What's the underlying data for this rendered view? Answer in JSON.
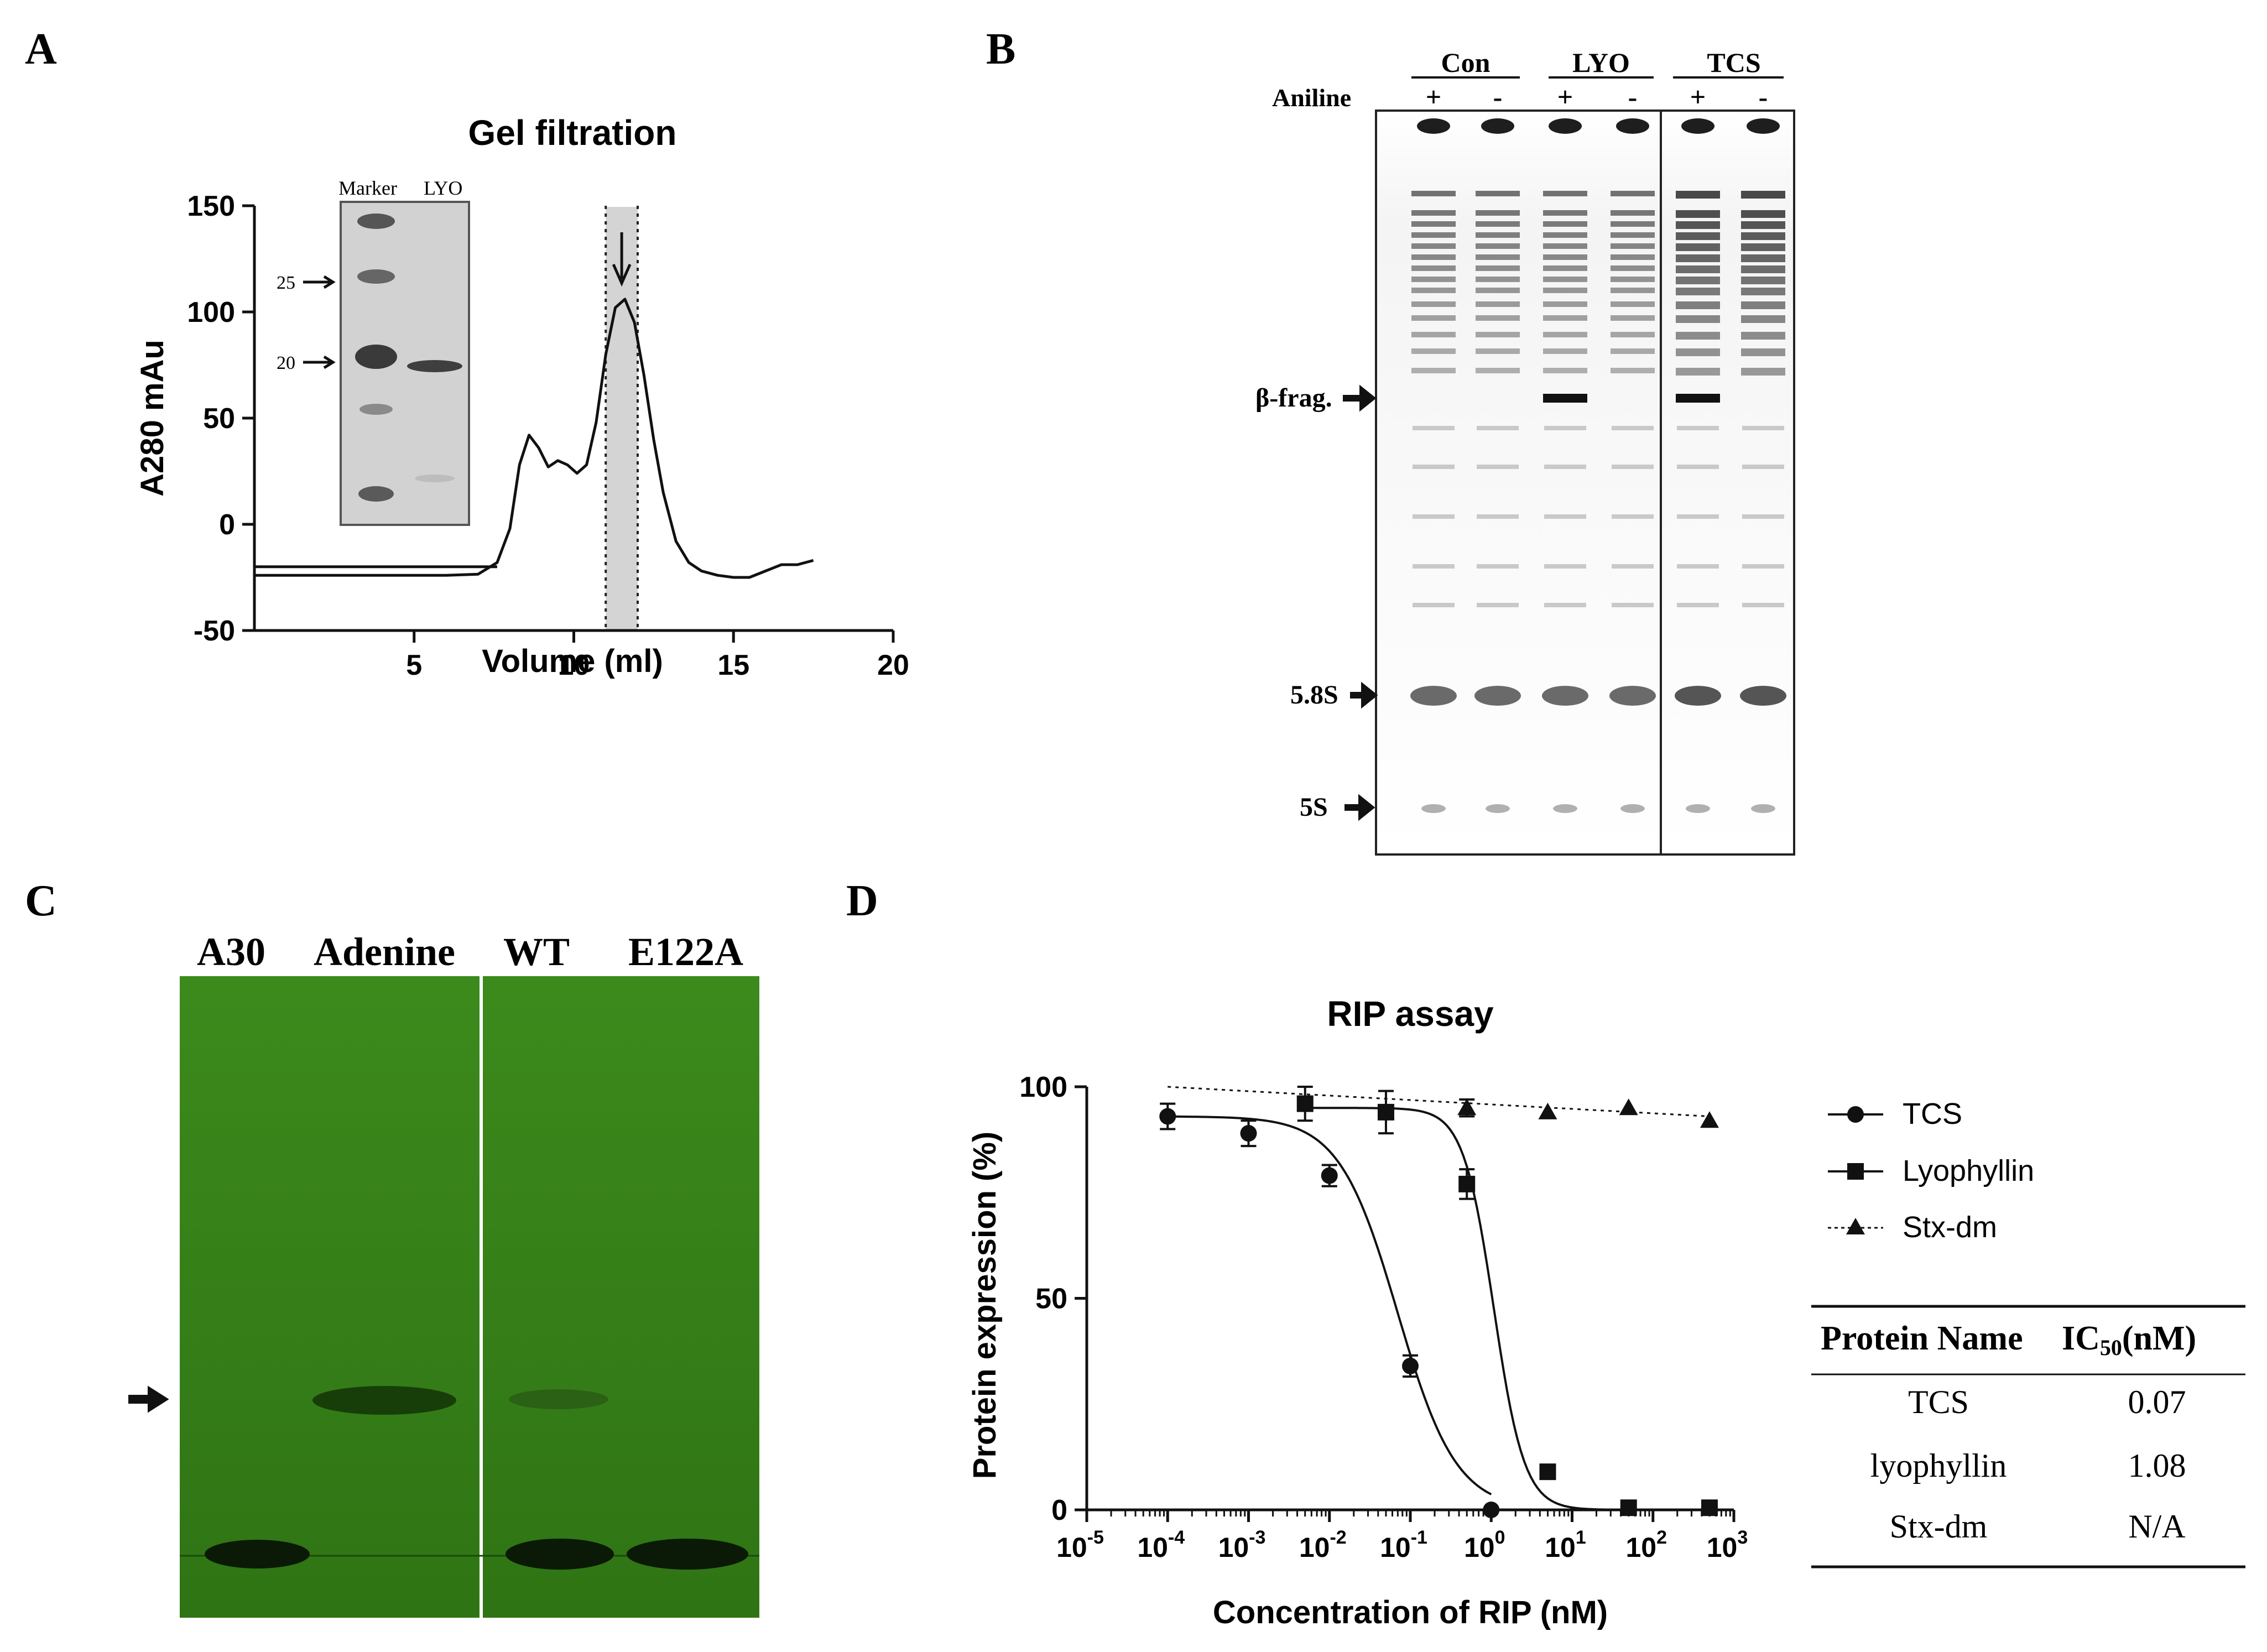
{
  "panels": {
    "A": {
      "letter": "A",
      "inset": {
        "marker_label": "Marker",
        "lyo_label": "LYO",
        "kda_25": "25",
        "kda_20": "20"
      }
    },
    "B": {
      "letter": "B",
      "groups": [
        "Con",
        "LYO",
        "TCS"
      ],
      "aniline_label": "Aniline",
      "lane_signs": [
        "+",
        "-",
        "+",
        "-",
        "+",
        "-"
      ],
      "band_labels": {
        "beta": "β-frag.",
        "s58": "5.8S",
        "s5": "5S"
      }
    },
    "C": {
      "letter": "C",
      "lanes": [
        "A30",
        "Adenine",
        "WT",
        "E122A"
      ],
      "colors": {
        "gel": "#3c8a1c",
        "band": "#0b1a06"
      }
    },
    "D": {
      "letter": "D",
      "legend": [
        "TCS",
        "Lyophyllin",
        "Stx-dm"
      ],
      "table": {
        "header": {
          "name": "Protein Name",
          "ic_prefix": "IC",
          "ic_sub": "50",
          "ic_suffix": "(nM)"
        },
        "rows": [
          {
            "name": "TCS",
            "value": "0.07"
          },
          {
            "name": "lyophyllin",
            "value": "1.08"
          },
          {
            "name": "Stx-dm",
            "value": "N/A"
          }
        ]
      }
    }
  },
  "chart_data": [
    {
      "type": "line",
      "panel": "A",
      "title": "Gel filtration",
      "xlabel": "Volume (ml)",
      "ylabel": "A280 mAu",
      "xlim": [
        0,
        20
      ],
      "ylim": [
        -50,
        150
      ],
      "xticks": [
        5,
        10,
        15,
        20
      ],
      "yticks": [
        -50,
        0,
        50,
        100,
        150
      ],
      "series": [
        {
          "name": "A280 trace",
          "x": [
            0,
            2,
            4,
            6,
            7,
            7.6,
            8,
            8.3,
            8.6,
            8.9,
            9.2,
            9.5,
            9.8,
            10.1,
            10.4,
            10.7,
            11.0,
            11.3,
            11.6,
            11.9,
            12.2,
            12.5,
            12.8,
            13.2,
            13.6,
            14.0,
            14.5,
            15.0,
            15.5,
            16.0,
            16.5,
            17.0,
            17.5
          ],
          "y": [
            -24,
            -24,
            -24,
            -24,
            -23.5,
            -18,
            -2,
            28,
            42,
            36,
            27,
            30,
            28,
            24,
            28,
            48,
            80,
            102,
            106,
            95,
            70,
            40,
            15,
            -8,
            -18,
            -22,
            -24,
            -25,
            -25,
            -22,
            -19,
            -19,
            -17
          ]
        },
        {
          "name": "baseline",
          "x": [
            0,
            7.6
          ],
          "y": [
            -20,
            -20
          ]
        }
      ],
      "annotations": {
        "shaded_region": [
          11.0,
          12.0
        ],
        "arrow_x": 11.5
      }
    },
    {
      "type": "line",
      "panel": "D",
      "title": "RIP assay",
      "xlabel": "Concentration of RIP (nM)",
      "ylabel": "Protein expression (%)",
      "xscale": "log",
      "xlim_exp": [
        -5,
        3
      ],
      "ylim": [
        0,
        100
      ],
      "yticks": [
        0,
        50,
        100
      ],
      "xticks_exp": [
        -5,
        -4,
        -3,
        -2,
        -1,
        0,
        1,
        2,
        3
      ],
      "series": [
        {
          "name": "TCS",
          "marker": "circle",
          "line": "solid",
          "x": [
            0.0001,
            0.001,
            0.01,
            0.1,
            1
          ],
          "y": [
            93,
            89,
            79,
            34,
            0
          ],
          "err": [
            3,
            3,
            2.5,
            2.5,
            0
          ],
          "fit": {
            "top": 93,
            "bottom": 0,
            "ic50": 0.07,
            "hill": 1.2
          }
        },
        {
          "name": "Lyophyllin",
          "marker": "square",
          "line": "solid",
          "x": [
            0.005,
            0.05,
            0.5,
            5,
            50,
            500
          ],
          "y": [
            96,
            94,
            77,
            9,
            0.5,
            0.5
          ],
          "err": [
            4,
            5,
            3.5,
            0,
            0,
            0
          ],
          "fit": {
            "top": 95,
            "bottom": 0,
            "ic50": 1.08,
            "hill": 2.3
          }
        },
        {
          "name": "Stx-dm",
          "marker": "triangle",
          "line": "dotted",
          "x": [
            0.5,
            5,
            50,
            500
          ],
          "y": [
            95,
            94,
            95,
            92
          ],
          "err": [
            2,
            0,
            0,
            0
          ],
          "fit_line": {
            "x": [
              0.0001,
              500
            ],
            "y": [
              100,
              93
            ]
          }
        }
      ]
    }
  ]
}
